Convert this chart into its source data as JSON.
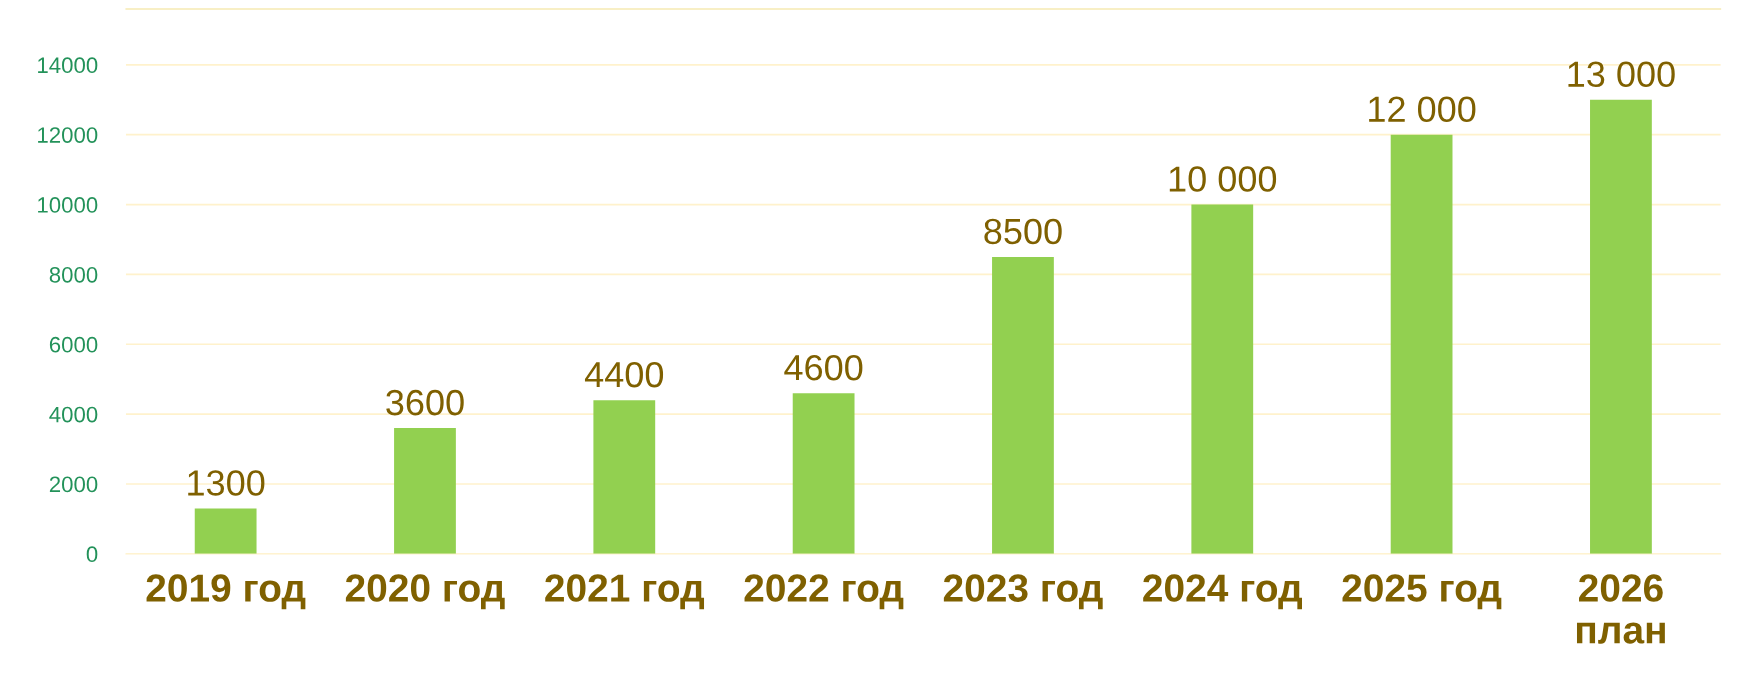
{
  "chart_data": {
    "type": "bar",
    "categories": [
      "2019 год",
      "2020 год",
      "2021 год",
      "2022 год",
      "2023 год",
      "2024 год",
      "2025 год",
      "2026\nплан"
    ],
    "values": [
      1300,
      3600,
      4400,
      4600,
      8500,
      10000,
      12000,
      13000
    ],
    "value_labels": [
      "1300",
      "3600",
      "4400",
      "4600",
      "8500",
      "10 000",
      "12 000",
      "13 000"
    ],
    "color": "#92d050",
    "ylim": [
      0,
      15600
    ],
    "yticks": [
      0,
      2000,
      4000,
      6000,
      8000,
      10000,
      12000,
      14000
    ],
    "grid": "y",
    "legend": false
  }
}
